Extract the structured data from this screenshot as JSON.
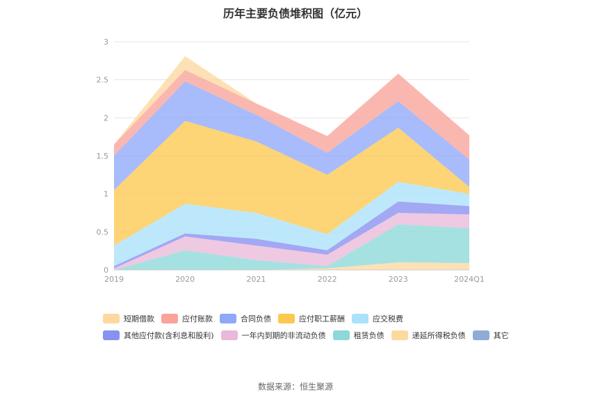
{
  "title": "历年主要负债堆积图（亿元）",
  "source": "数据来源：恒生聚源",
  "chart_data": {
    "type": "area",
    "stacked": true,
    "categories": [
      "2019",
      "2020",
      "2021",
      "2022",
      "2023",
      "2024Q1"
    ],
    "ylim": [
      0,
      3
    ],
    "yticks": [
      "0",
      "0.5",
      "1",
      "1.5",
      "2",
      "2.5",
      "3"
    ],
    "grid": true,
    "legend_position": "bottom",
    "series": [
      {
        "name": "递延所得税负债",
        "color": "#fdd9a0",
        "values": [
          0.0,
          0.0,
          0.0,
          0.02,
          0.1,
          0.09
        ]
      },
      {
        "name": "租赁负债",
        "color": "#8dd8d8",
        "values": [
          0.0,
          0.26,
          0.13,
          0.03,
          0.5,
          0.46
        ]
      },
      {
        "name": "一年内到期的非流动负债",
        "color": "#eab8d8",
        "values": [
          0.02,
          0.18,
          0.19,
          0.15,
          0.15,
          0.18
        ]
      },
      {
        "name": "其他应付款(含利息和股利)",
        "color": "#8890f0",
        "values": [
          0.03,
          0.04,
          0.09,
          0.06,
          0.15,
          0.11
        ]
      },
      {
        "name": "应交税费",
        "color": "#aae2fb",
        "values": [
          0.27,
          0.39,
          0.34,
          0.21,
          0.26,
          0.16
        ]
      },
      {
        "name": "应付职工薪酬",
        "color": "#fdc84f",
        "values": [
          0.73,
          1.09,
          0.94,
          0.78,
          0.71,
          0.09
        ]
      },
      {
        "name": "合同负债",
        "color": "#8fa8f8",
        "values": [
          0.45,
          0.52,
          0.35,
          0.29,
          0.35,
          0.36
        ]
      },
      {
        "name": "应付账款",
        "color": "#f9a39a",
        "values": [
          0.15,
          0.15,
          0.15,
          0.22,
          0.36,
          0.32
        ]
      },
      {
        "name": "短期借款",
        "color": "#fdd9a0",
        "values": [
          0.0,
          0.18,
          0.0,
          0.0,
          0.0,
          0.0
        ]
      },
      {
        "name": "其它",
        "color": "#8eacd6",
        "values": [
          0.0,
          0.0,
          0.0,
          0.0,
          0.0,
          0.0
        ]
      }
    ],
    "legend": [
      {
        "name": "短期借款",
        "color": "#fdd9a0"
      },
      {
        "name": "应付账款",
        "color": "#f9a39a"
      },
      {
        "name": "合同负债",
        "color": "#8fa8f8"
      },
      {
        "name": "应付职工薪酬",
        "color": "#fdc84f"
      },
      {
        "name": "应交税费",
        "color": "#aae2fb"
      },
      {
        "name": "其他应付款(含利息和股利)",
        "color": "#8890f0"
      },
      {
        "name": "一年内到期的非流动负债",
        "color": "#eab8d8"
      },
      {
        "name": "租赁负债",
        "color": "#8dd8d8"
      },
      {
        "name": "递延所得税负债",
        "color": "#fdd9a0"
      },
      {
        "name": "其它",
        "color": "#8eacd6"
      }
    ]
  }
}
